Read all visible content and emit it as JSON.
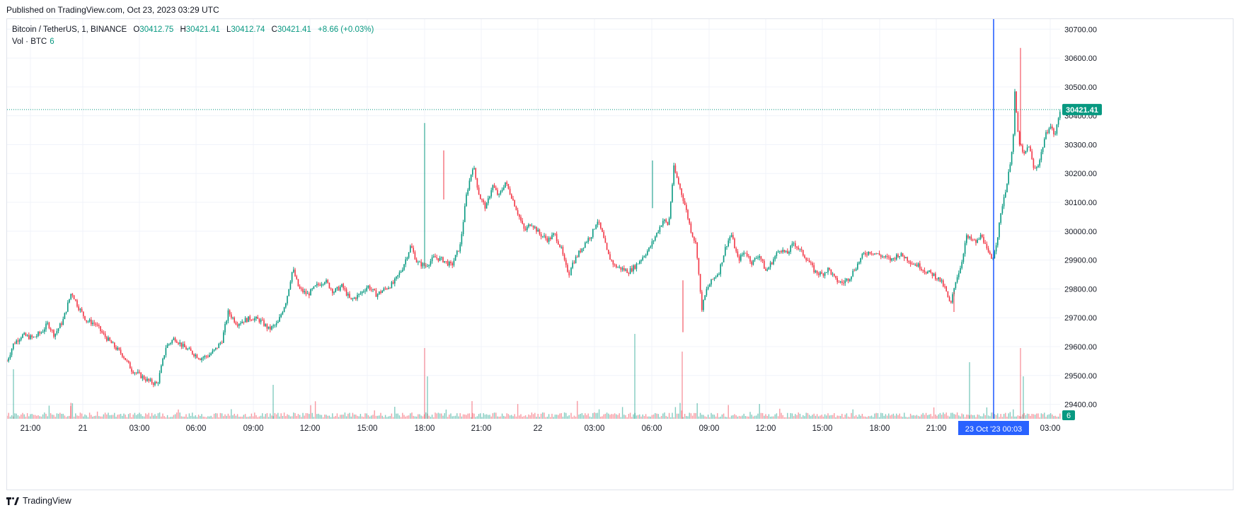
{
  "published": "Published on TradingView.com, Oct 23, 2023 03:29 UTC",
  "legend": {
    "symbol": "Bitcoin / TetherUS, 1, BINANCE",
    "open_label": "O",
    "open": "30412.75",
    "high_label": "H",
    "high": "30421.41",
    "low_label": "L",
    "low": "30412.74",
    "close_label": "C",
    "close": "30421.41",
    "change": "+8.66 (+0.03%)",
    "volume_label": "Vol · BTC",
    "volume_value": "6"
  },
  "footer": {
    "brand": "TradingView"
  },
  "colors": {
    "up": "#089981",
    "down": "#f23645",
    "crosshair": "#2962ff",
    "grid": "#f0f3fa"
  },
  "chart_data": {
    "type": "candlestick",
    "symbol": "BTCUSDT",
    "interval": "1",
    "y_axis": {
      "ticks": [
        "29400.00",
        "29500.00",
        "29600.00",
        "29700.00",
        "29800.00",
        "29900.00",
        "30000.00",
        "30100.00",
        "30200.00",
        "30300.00",
        "30400.00",
        "30500.00",
        "30600.00",
        "30700.00"
      ],
      "range": [
        29350,
        30735
      ]
    },
    "x_axis": {
      "ticks": [
        "21:00",
        "21",
        "03:00",
        "06:00",
        "09:00",
        "12:00",
        "15:00",
        "18:00",
        "21:00",
        "22",
        "03:00",
        "06:00",
        "09:00",
        "12:00",
        "15:00",
        "18:00",
        "21:00",
        "00:03",
        "03:00"
      ],
      "range_hours": [
        -0.5,
        30.7
      ]
    },
    "last_price": "30421.41",
    "last_price_value": 30421.41,
    "crosshair": {
      "label": "23 Oct '23   00:03",
      "hour": 27.05
    },
    "volume_badge": "6",
    "price_path": [
      [
        0,
        29550
      ],
      [
        0.3,
        29610
      ],
      [
        0.7,
        29640
      ],
      [
        1.2,
        29630
      ],
      [
        1.6,
        29650
      ],
      [
        1.9,
        29680
      ],
      [
        2.2,
        29640
      ],
      [
        2.6,
        29690
      ],
      [
        3.0,
        29790
      ],
      [
        3.3,
        29740
      ],
      [
        3.7,
        29690
      ],
      [
        4.1,
        29680
      ],
      [
        4.5,
        29640
      ],
      [
        5.0,
        29600
      ],
      [
        5.4,
        29570
      ],
      [
        5.8,
        29520
      ],
      [
        6.2,
        29500
      ],
      [
        6.6,
        29480
      ],
      [
        7.0,
        29470
      ],
      [
        7.4,
        29600
      ],
      [
        7.8,
        29630
      ],
      [
        8.2,
        29600
      ],
      [
        8.6,
        29580
      ],
      [
        9.0,
        29560
      ],
      [
        9.4,
        29570
      ],
      [
        9.7,
        29590
      ],
      [
        10.0,
        29620
      ],
      [
        10.3,
        29720
      ],
      [
        10.7,
        29680
      ],
      [
        11.0,
        29690
      ],
      [
        11.4,
        29700
      ],
      [
        11.8,
        29690
      ],
      [
        12.2,
        29660
      ],
      [
        12.6,
        29680
      ],
      [
        13.0,
        29760
      ],
      [
        13.3,
        29870
      ],
      [
        13.6,
        29800
      ],
      [
        14.0,
        29780
      ],
      [
        14.4,
        29810
      ],
      [
        14.8,
        29830
      ],
      [
        15.2,
        29790
      ],
      [
        15.6,
        29810
      ],
      [
        16.0,
        29760
      ],
      [
        16.4,
        29780
      ],
      [
        16.8,
        29810
      ],
      [
        17.2,
        29780
      ],
      [
        17.6,
        29800
      ],
      [
        18.0,
        29820
      ],
      [
        18.4,
        29870
      ],
      [
        18.8,
        29950
      ],
      [
        19.1,
        29890
      ],
      [
        19.5,
        29880
      ],
      [
        19.9,
        29910
      ],
      [
        20.3,
        29900
      ],
      [
        20.7,
        29880
      ],
      [
        21.1,
        29950
      ],
      [
        21.4,
        30130
      ],
      [
        21.7,
        30230
      ],
      [
        22.0,
        30120
      ],
      [
        22.3,
        30080
      ],
      [
        22.6,
        30160
      ],
      [
        22.9,
        30120
      ],
      [
        23.2,
        30170
      ],
      [
        23.5,
        30120
      ],
      [
        23.8,
        30060
      ],
      [
        24.1,
        30000
      ],
      [
        24.4,
        30030
      ],
      [
        24.8,
        29990
      ],
      [
        25.2,
        29970
      ],
      [
        25.5,
        29990
      ],
      [
        25.8,
        29940
      ],
      [
        26.0,
        29880
      ],
      [
        26.2,
        29850
      ]
    ],
    "price_path_day2": [
      [
        0,
        29880
      ],
      [
        0.4,
        29920
      ],
      [
        0.8,
        29960
      ],
      [
        1.2,
        29990
      ],
      [
        1.5,
        30040
      ],
      [
        1.8,
        29990
      ],
      [
        2.1,
        29920
      ],
      [
        2.5,
        29880
      ],
      [
        2.9,
        29870
      ],
      [
        3.3,
        29860
      ],
      [
        3.7,
        29880
      ],
      [
        4.1,
        29910
      ],
      [
        4.5,
        29940
      ],
      [
        4.9,
        29990
      ],
      [
        5.3,
        30040
      ],
      [
        5.6,
        30020
      ],
      [
        5.9,
        30220
      ],
      [
        6.2,
        30160
      ],
      [
        6.5,
        30100
      ],
      [
        6.9,
        30000
      ],
      [
        7.2,
        29950
      ],
      [
        7.5,
        29730
      ],
      [
        7.8,
        29800
      ],
      [
        8.1,
        29830
      ],
      [
        8.5,
        29860
      ],
      [
        8.9,
        29950
      ],
      [
        9.2,
        29990
      ],
      [
        9.6,
        29900
      ],
      [
        10.0,
        29930
      ],
      [
        10.4,
        29890
      ],
      [
        10.8,
        29920
      ],
      [
        11.2,
        29860
      ],
      [
        11.6,
        29900
      ],
      [
        12.0,
        29940
      ],
      [
        12.4,
        29920
      ],
      [
        12.8,
        29960
      ],
      [
        13.2,
        29930
      ],
      [
        13.6,
        29900
      ],
      [
        14.0,
        29860
      ],
      [
        14.4,
        29850
      ],
      [
        14.8,
        29870
      ],
      [
        15.2,
        29830
      ],
      [
        15.6,
        29820
      ],
      [
        16.0,
        29840
      ],
      [
        16.4,
        29880
      ],
      [
        16.8,
        29920
      ],
      [
        17.2,
        29930
      ],
      [
        17.6,
        29920
      ],
      [
        18.0,
        29910
      ],
      [
        18.4,
        29900
      ],
      [
        18.8,
        29920
      ],
      [
        19.2,
        29910
      ],
      [
        19.6,
        29890
      ],
      [
        20.0,
        29880
      ],
      [
        20.4,
        29860
      ],
      [
        20.8,
        29850
      ],
      [
        21.2,
        29830
      ],
      [
        21.5,
        29800
      ],
      [
        21.8,
        29740
      ],
      [
        22.1,
        29830
      ],
      [
        22.4,
        29880
      ],
      [
        22.7,
        29980
      ],
      [
        23.0,
        29970
      ],
      [
        23.3,
        29960
      ],
      [
        23.6,
        29990
      ],
      [
        23.9,
        29930
      ],
      [
        24.2,
        29900
      ],
      [
        24.5,
        29980
      ],
      [
        24.8,
        30100
      ],
      [
        25.1,
        30180
      ],
      [
        25.4,
        30320
      ],
      [
        25.5,
        30480
      ],
      [
        25.7,
        30320
      ],
      [
        26.0,
        30260
      ],
      [
        26.3,
        30300
      ],
      [
        26.6,
        30210
      ],
      [
        26.9,
        30240
      ],
      [
        27.2,
        30320
      ],
      [
        27.5,
        30370
      ],
      [
        27.8,
        30330
      ],
      [
        28.1,
        30420
      ]
    ],
    "volume": {
      "baseline": "low",
      "spikes_at_hours": [
        0.2,
        2.9,
        13.4,
        18.0,
        21.5,
        22.5,
        26.7,
        31.3,
        32.5,
        45.5,
        49.8,
        51.8,
        52.0
      ]
    }
  }
}
